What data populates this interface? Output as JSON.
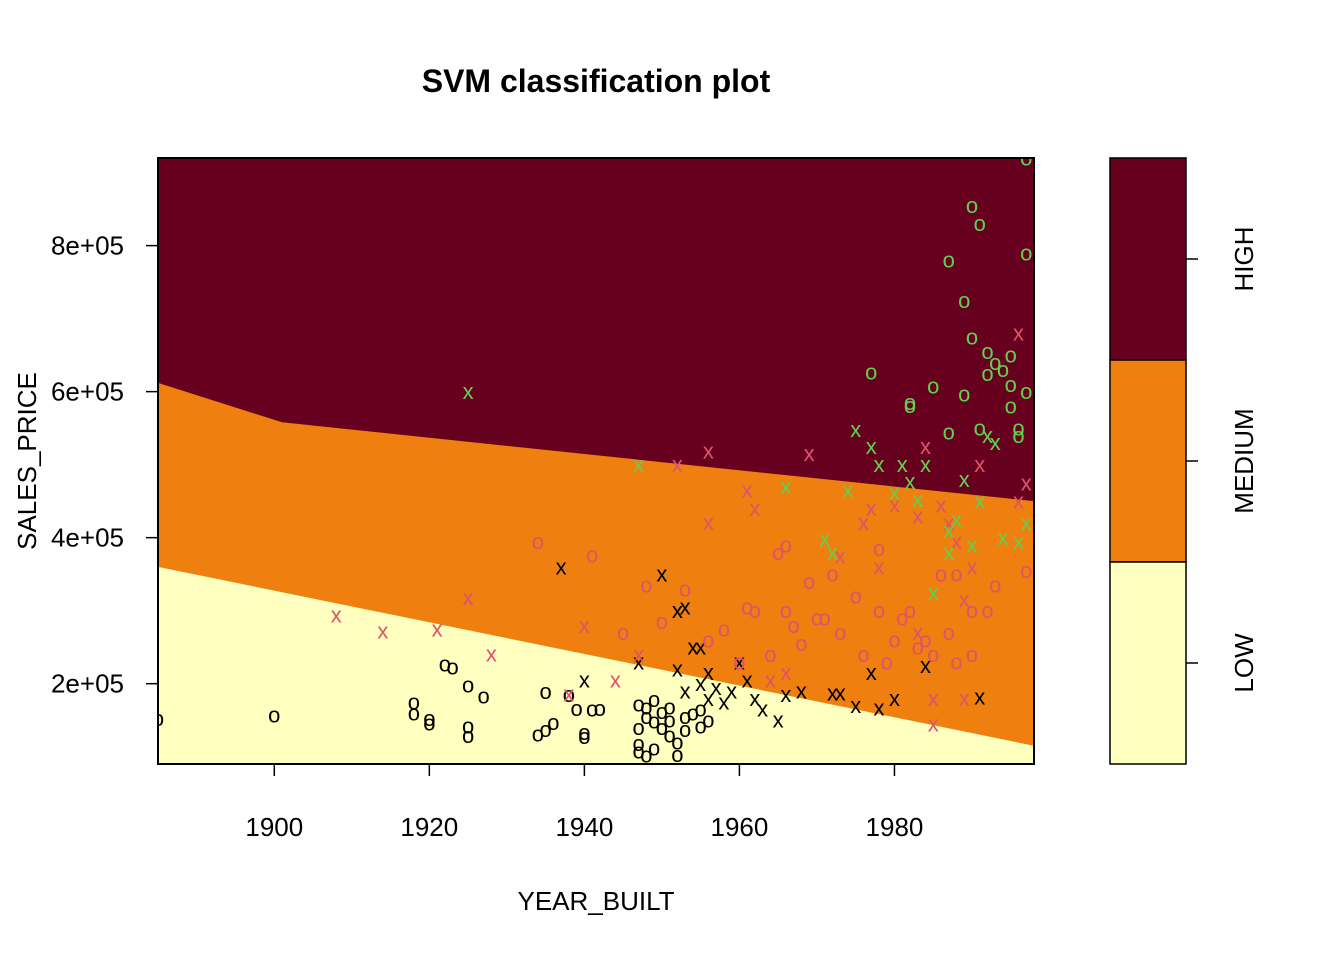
{
  "chart_data": {
    "type": "scatter",
    "title": "SVM classification plot",
    "xlabel": "YEAR_BUILT",
    "ylabel": "SALES_PRICE",
    "xlim": [
      1885,
      1998
    ],
    "ylim": [
      90000,
      920000
    ],
    "x_ticks": [
      1900,
      1920,
      1940,
      1960,
      1980
    ],
    "x_tick_labels": [
      "1900",
      "1920",
      "1940",
      "1960",
      "1980"
    ],
    "y_ticks": [
      200000,
      400000,
      600000,
      800000
    ],
    "y_tick_labels": [
      "2e+05",
      "4e+05",
      "6e+05",
      "8e+05"
    ],
    "regions": {
      "low_medium_boundary": [
        [
          1885,
          360000
        ],
        [
          1998,
          115000
        ]
      ],
      "medium_high_boundary": [
        [
          1885,
          612000
        ],
        [
          1901,
          558000
        ],
        [
          1998,
          450000
        ]
      ]
    },
    "legend": {
      "placement": "right",
      "classes": [
        {
          "label": "HIGH",
          "color": "#67001f"
        },
        {
          "label": "MEDIUM",
          "color": "#ef7f0e"
        },
        {
          "label": "LOW",
          "color": "#ffffc0"
        }
      ]
    },
    "colors": {
      "low_region": "#ffffc0",
      "medium_region": "#ef7f0e",
      "high_region": "#67001f",
      "class_low": "#000000",
      "class_medium": "#df536b",
      "class_high": "#61d04f"
    },
    "marker_legend": {
      "o": "data point",
      "x": "support vector"
    },
    "series": [
      {
        "class": "LOW",
        "color": "#000000",
        "marker": "o",
        "points": [
          [
            1885,
            152000
          ],
          [
            1900,
            157000
          ],
          [
            1918,
            175000
          ],
          [
            1918,
            160000
          ],
          [
            1920,
            152000
          ],
          [
            1920,
            146000
          ],
          [
            1922,
            227000
          ],
          [
            1923,
            223000
          ],
          [
            1925,
            198000
          ],
          [
            1925,
            142000
          ],
          [
            1925,
            129000
          ],
          [
            1927,
            183000
          ],
          [
            1934,
            131000
          ],
          [
            1935,
            189000
          ],
          [
            1935,
            137000
          ],
          [
            1936,
            147000
          ],
          [
            1938,
            185000
          ],
          [
            1939,
            166000
          ],
          [
            1940,
            133000
          ],
          [
            1940,
            128000
          ],
          [
            1941,
            165000
          ],
          [
            1942,
            166000
          ],
          [
            1947,
            172000
          ],
          [
            1947,
            140000
          ],
          [
            1947,
            118000
          ],
          [
            1947,
            108000
          ],
          [
            1948,
            168000
          ],
          [
            1948,
            155000
          ],
          [
            1948,
            102000
          ],
          [
            1949,
            178000
          ],
          [
            1949,
            149000
          ],
          [
            1949,
            112000
          ],
          [
            1950,
            162000
          ],
          [
            1950,
            140000
          ],
          [
            1951,
            168000
          ],
          [
            1951,
            150000
          ],
          [
            1951,
            130000
          ],
          [
            1952,
            120000
          ],
          [
            1952,
            103000
          ],
          [
            1953,
            155000
          ],
          [
            1953,
            137000
          ],
          [
            1954,
            160000
          ],
          [
            1955,
            142000
          ],
          [
            1955,
            165000
          ],
          [
            1956,
            150000
          ]
        ]
      },
      {
        "class": "LOW",
        "color": "#000000",
        "marker": "x",
        "points": [
          [
            1937,
            360000
          ],
          [
            1940,
            205000
          ],
          [
            1947,
            230000
          ],
          [
            1950,
            350000
          ],
          [
            1952,
            300000
          ],
          [
            1953,
            305000
          ],
          [
            1952,
            220000
          ],
          [
            1953,
            190000
          ],
          [
            1954,
            250000
          ],
          [
            1955,
            200000
          ],
          [
            1955,
            250000
          ],
          [
            1956,
            215000
          ],
          [
            1956,
            180000
          ],
          [
            1957,
            195000
          ],
          [
            1958,
            175000
          ],
          [
            1959,
            190000
          ],
          [
            1960,
            230000
          ],
          [
            1961,
            205000
          ],
          [
            1962,
            180000
          ],
          [
            1963,
            165000
          ],
          [
            1965,
            150000
          ],
          [
            1966,
            185000
          ],
          [
            1968,
            190000
          ],
          [
            1972,
            187000
          ],
          [
            1973,
            187000
          ],
          [
            1975,
            170000
          ],
          [
            1977,
            215000
          ],
          [
            1978,
            167000
          ],
          [
            1980,
            180000
          ],
          [
            1984,
            225000
          ],
          [
            1991,
            182000
          ]
        ]
      },
      {
        "class": "MEDIUM",
        "color": "#df536b",
        "marker": "o",
        "points": [
          [
            1934,
            395000
          ],
          [
            1941,
            376000
          ],
          [
            1945,
            270000
          ],
          [
            1948,
            335000
          ],
          [
            1950,
            285000
          ],
          [
            1953,
            330000
          ],
          [
            1956,
            260000
          ],
          [
            1958,
            275000
          ],
          [
            1960,
            230000
          ],
          [
            1961,
            305000
          ],
          [
            1962,
            300000
          ],
          [
            1964,
            240000
          ],
          [
            1965,
            380000
          ],
          [
            1966,
            390000
          ],
          [
            1966,
            300000
          ],
          [
            1967,
            280000
          ],
          [
            1968,
            255000
          ],
          [
            1969,
            340000
          ],
          [
            1970,
            290000
          ],
          [
            1971,
            290000
          ],
          [
            1972,
            350000
          ],
          [
            1973,
            270000
          ],
          [
            1975,
            320000
          ],
          [
            1976,
            240000
          ],
          [
            1978,
            385000
          ],
          [
            1978,
            300000
          ],
          [
            1979,
            230000
          ],
          [
            1980,
            260000
          ],
          [
            1981,
            290000
          ],
          [
            1982,
            300000
          ],
          [
            1983,
            250000
          ],
          [
            1984,
            260000
          ],
          [
            1985,
            240000
          ],
          [
            1986,
            350000
          ],
          [
            1987,
            270000
          ],
          [
            1988,
            230000
          ],
          [
            1988,
            350000
          ],
          [
            1990,
            300000
          ],
          [
            1990,
            240000
          ],
          [
            1992,
            300000
          ],
          [
            1993,
            335000
          ],
          [
            1997,
            355000
          ]
        ]
      },
      {
        "class": "MEDIUM",
        "color": "#df536b",
        "marker": "x",
        "points": [
          [
            1908,
            294000
          ],
          [
            1914,
            272000
          ],
          [
            1921,
            275000
          ],
          [
            1925,
            318000
          ],
          [
            1928,
            241000
          ],
          [
            1938,
            186000
          ],
          [
            1940,
            280000
          ],
          [
            1944,
            205000
          ],
          [
            1947,
            240000
          ],
          [
            1952,
            500000
          ],
          [
            1956,
            519000
          ],
          [
            1956,
            421000
          ],
          [
            1961,
            465000
          ],
          [
            1962,
            440000
          ],
          [
            1969,
            515000
          ],
          [
            1973,
            375000
          ],
          [
            1976,
            421000
          ],
          [
            1977,
            440000
          ],
          [
            1978,
            360000
          ],
          [
            1980,
            445000
          ],
          [
            1983,
            430000
          ],
          [
            1984,
            525000
          ],
          [
            1986,
            445000
          ],
          [
            1987,
            420000
          ],
          [
            1988,
            395000
          ],
          [
            1989,
            315000
          ],
          [
            1990,
            360000
          ],
          [
            1991,
            500000
          ],
          [
            1996,
            680000
          ],
          [
            1996,
            450000
          ],
          [
            1997,
            475000
          ],
          [
            1983,
            270000
          ],
          [
            1985,
            180000
          ],
          [
            1985,
            145000
          ],
          [
            1989,
            180000
          ],
          [
            1964,
            205000
          ],
          [
            1966,
            215000
          ]
        ]
      },
      {
        "class": "HIGH",
        "color": "#61d04f",
        "marker": "o",
        "points": [
          [
            1977,
            627000
          ],
          [
            1982,
            585000
          ],
          [
            1982,
            581000
          ],
          [
            1985,
            608000
          ],
          [
            1987,
            545000
          ],
          [
            1987,
            780000
          ],
          [
            1989,
            725000
          ],
          [
            1989,
            597000
          ],
          [
            1990,
            855000
          ],
          [
            1990,
            675000
          ],
          [
            1991,
            830000
          ],
          [
            1991,
            550000
          ],
          [
            1992,
            655000
          ],
          [
            1992,
            625000
          ],
          [
            1993,
            640000
          ],
          [
            1994,
            630000
          ],
          [
            1995,
            650000
          ],
          [
            1995,
            610000
          ],
          [
            1995,
            580000
          ],
          [
            1996,
            550000
          ],
          [
            1996,
            540000
          ],
          [
            1997,
            600000
          ],
          [
            1997,
            790000
          ],
          [
            1997,
            920000
          ]
        ]
      },
      {
        "class": "HIGH",
        "color": "#61d04f",
        "marker": "x",
        "points": [
          [
            1925,
            600000
          ],
          [
            1947,
            500000
          ],
          [
            1966,
            470000
          ],
          [
            1971,
            398000
          ],
          [
            1972,
            380000
          ],
          [
            1974,
            465000
          ],
          [
            1975,
            548000
          ],
          [
            1977,
            525000
          ],
          [
            1978,
            500000
          ],
          [
            1980,
            462000
          ],
          [
            1981,
            500000
          ],
          [
            1982,
            477000
          ],
          [
            1983,
            452000
          ],
          [
            1984,
            500000
          ],
          [
            1985,
            325000
          ],
          [
            1987,
            410000
          ],
          [
            1987,
            380000
          ],
          [
            1988,
            425000
          ],
          [
            1989,
            480000
          ],
          [
            1990,
            390000
          ],
          [
            1991,
            450000
          ],
          [
            1992,
            540000
          ],
          [
            1993,
            530000
          ],
          [
            1994,
            400000
          ],
          [
            1996,
            395000
          ],
          [
            1997,
            420000
          ]
        ]
      }
    ]
  }
}
